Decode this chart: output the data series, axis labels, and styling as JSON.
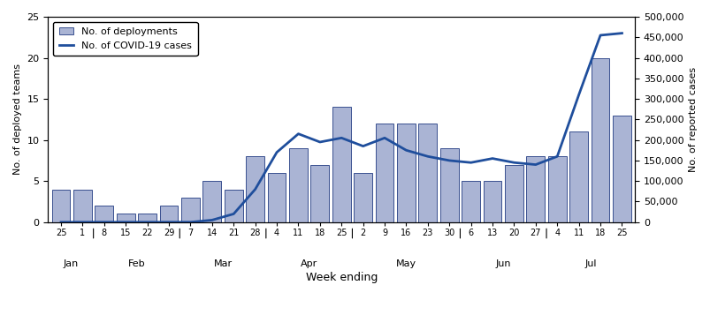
{
  "week_labels": [
    "25",
    "1",
    "8",
    "15",
    "22",
    "29",
    "7",
    "14",
    "21",
    "28",
    "4",
    "11",
    "18",
    "25",
    "2",
    "9",
    "16",
    "23",
    "30",
    "6",
    "13",
    "20",
    "27",
    "4",
    "11",
    "18",
    "25"
  ],
  "month_labels": [
    "Jan",
    "Feb",
    "Mar",
    "Apr",
    "May",
    "Jun",
    "Jul"
  ],
  "month_sep_positions": [
    1.5,
    5.5,
    9.5,
    13.5,
    18.5,
    22.5
  ],
  "deployments": [
    4,
    4,
    2,
    1,
    1,
    2,
    3,
    5,
    4,
    8,
    6,
    9,
    7,
    14,
    6,
    12,
    12,
    12,
    9,
    5,
    5,
    7,
    8,
    8,
    11,
    20,
    13
  ],
  "covid_cases": [
    0,
    0,
    0,
    0,
    0,
    0,
    0,
    5000,
    20000,
    80000,
    170000,
    215000,
    195000,
    205000,
    185000,
    205000,
    175000,
    160000,
    150000,
    145000,
    155000,
    145000,
    140000,
    160000,
    310000,
    455000,
    460000
  ],
  "bar_color": "#aab4d4",
  "bar_edge_color": "#3a5090",
  "line_color": "#1f4e9c",
  "left_ylim": [
    0,
    25
  ],
  "right_ylim": [
    0,
    500000
  ],
  "left_yticks": [
    0,
    5,
    10,
    15,
    20,
    25
  ],
  "right_yticks": [
    0,
    50000,
    100000,
    150000,
    200000,
    250000,
    300000,
    350000,
    400000,
    450000,
    500000
  ],
  "right_yticklabels": [
    "0",
    "50,000",
    "100,000",
    "150,000",
    "200,000",
    "250,000",
    "300,000",
    "350,000",
    "400,000",
    "450,000",
    "500,000"
  ],
  "left_ylabel": "No. of deployed teams",
  "right_ylabel": "No. of reported cases",
  "xlabel": "Week ending",
  "legend_bar_label": "No. of deployments",
  "legend_line_label": "No. of COVID-19 cases",
  "figsize": [
    8.04,
    3.57
  ],
  "dpi": 100
}
